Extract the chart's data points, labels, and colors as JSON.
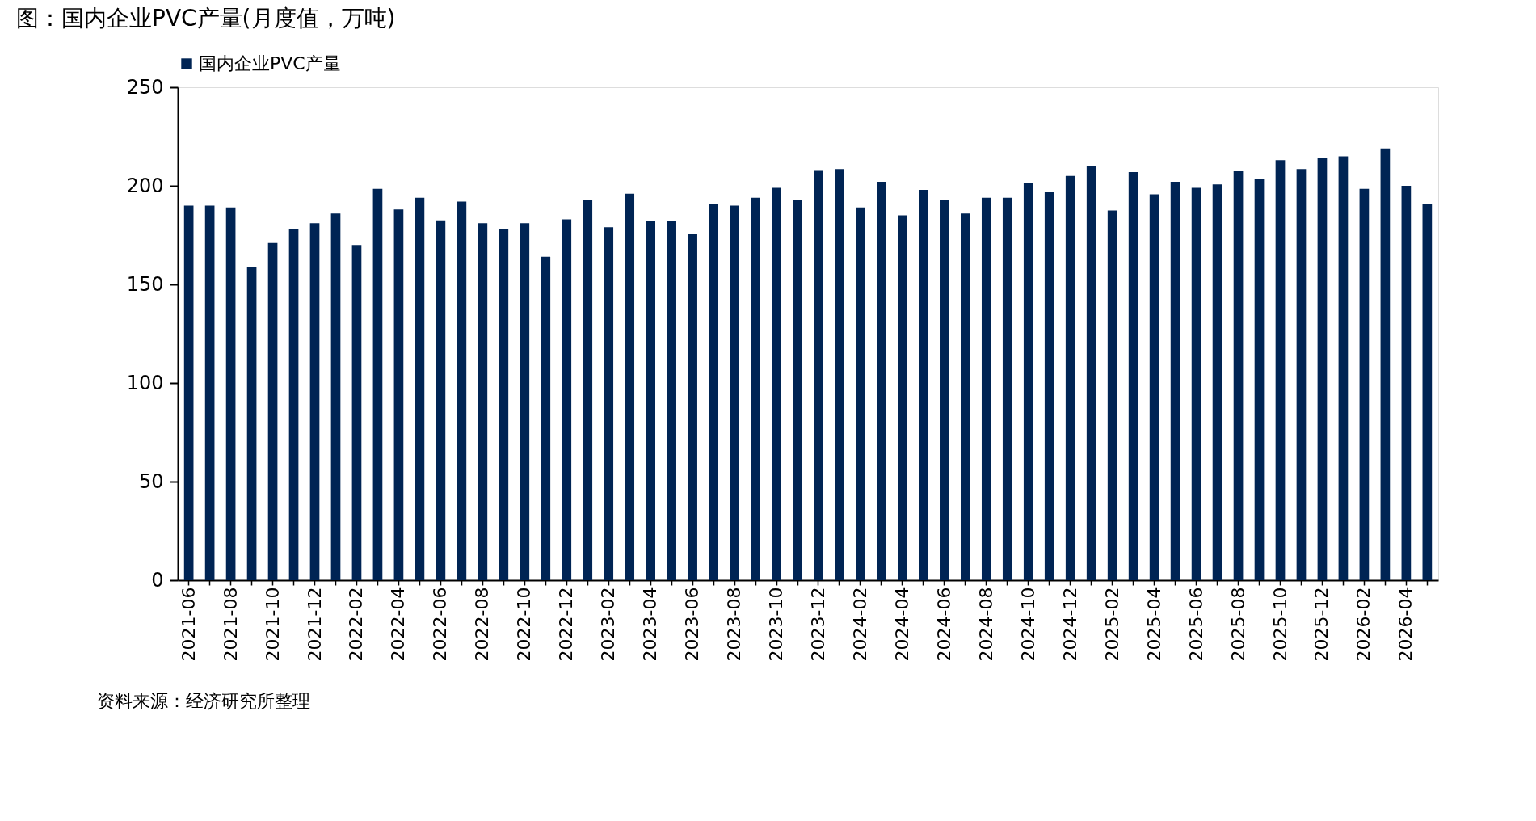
{
  "chart_data": {
    "type": "bar",
    "title": "图：国内企业PVC产量(月度值，万吨)",
    "categories": [
      "2021-06",
      null,
      "2021-08",
      null,
      "2021-10",
      null,
      "2021-12",
      null,
      "2022-02",
      null,
      "2022-04",
      null,
      "2022-06",
      null,
      "2022-08",
      null,
      "2022-10",
      null,
      "2022-12",
      null,
      "2023-02",
      null,
      "2023-04",
      null,
      "2023-06",
      null,
      "2023-08",
      null,
      "2023-10",
      null,
      "2023-12",
      null,
      "2024-02",
      null,
      "2024-04",
      null,
      "2024-06",
      null,
      "2024-08",
      null,
      "2024-10",
      null,
      "2024-12",
      null,
      "2025-02",
      null,
      "2025-04",
      null,
      "2025-06",
      null,
      "2025-08",
      null,
      "2025-10",
      null,
      "2025-12",
      null,
      "2026-02",
      null,
      "2026-04",
      null
    ],
    "series": [
      {
        "name": "国内企业PVC产量",
        "color": "#002454",
        "values": [
          190,
          190,
          189,
          159,
          171,
          178,
          181,
          186,
          170,
          198.5,
          188,
          194,
          182.5,
          192,
          181,
          178,
          181,
          164,
          183,
          193,
          179,
          196,
          182,
          182,
          175.6,
          191,
          190,
          194,
          199,
          193,
          208,
          208.5,
          189,
          202,
          185,
          198,
          193,
          186,
          194,
          194,
          201.6,
          197,
          205,
          210,
          187.5,
          207,
          195.7,
          202,
          199,
          200.7,
          207.6,
          203.5,
          213,
          208.5,
          214,
          215,
          198.5,
          219,
          200,
          190.7
        ]
      }
    ],
    "ylim": [
      0,
      250
    ],
    "yticks": [
      0,
      50,
      100,
      150,
      200,
      250
    ],
    "grid": false,
    "legend": "top",
    "annotations": [
      "资料来源：经济研究所整理"
    ]
  }
}
